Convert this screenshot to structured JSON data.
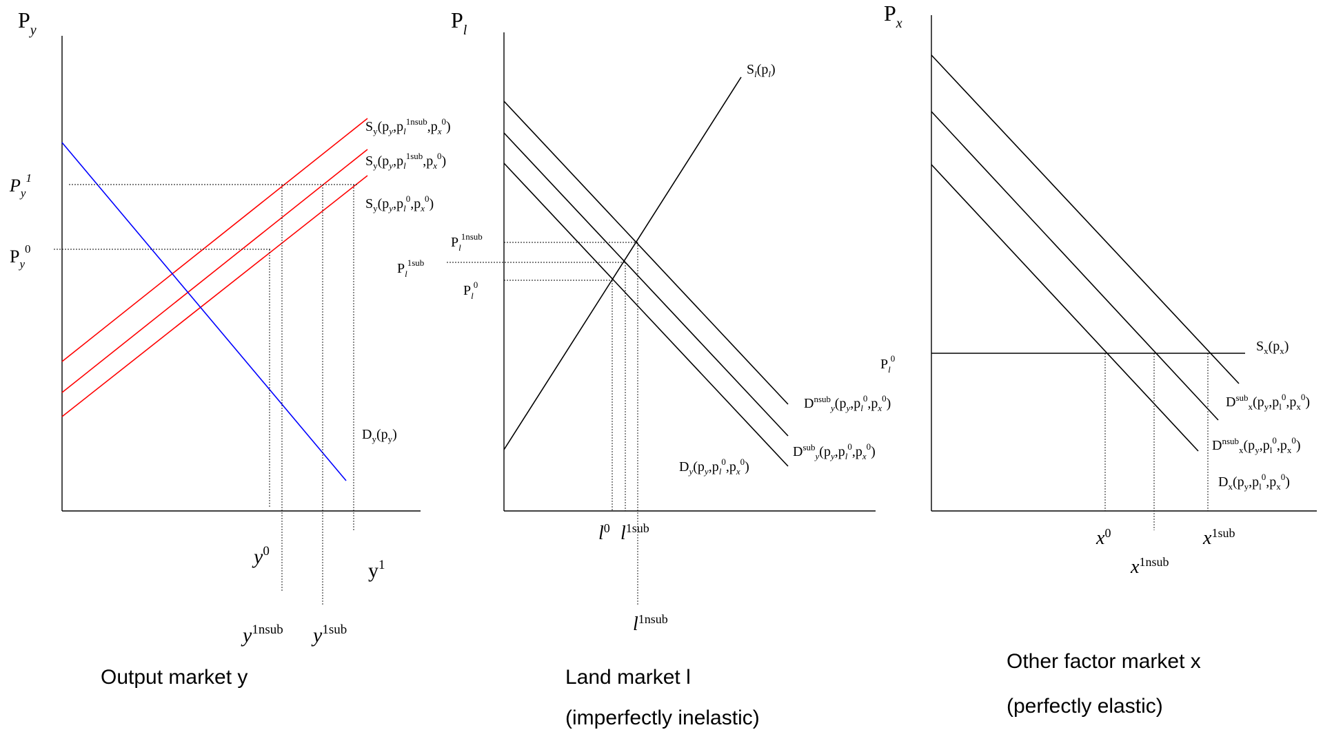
{
  "panel_y": {
    "caption": "Output market y",
    "price_axis_label": "P",
    "price_axis_sub": "y",
    "labels": {
      "s_top": {
        "main": "S",
        "sub": "y",
        "args": "(p",
        "args_sub": "y",
        "args2": ",p",
        "args2_sub": "l",
        "args2_sup": "1nsub",
        "args3": ",p",
        "args3_sub": "x",
        "args3_sup": "0",
        "close": ")"
      },
      "s_mid": {
        "main": "S",
        "sub": "y",
        "args": "(p",
        "args_sub": "y",
        "args2": ",p",
        "args2_sub": "l",
        "args2_sup": "1sub",
        "args3": ",p",
        "args3_sub": "x",
        "args3_sup": "0",
        "close": ")"
      },
      "s_low": {
        "main": "S",
        "sub": "y",
        "args": "(p",
        "args_sub": "y",
        "args2": ",p",
        "args2_sub": "l",
        "args2_sup": "0",
        "args3": ",p",
        "args3_sub": "x",
        "args3_sup": "0",
        "close": ")"
      },
      "demand": {
        "main": "D",
        "sub": "y",
        "args": "(p",
        "args_sub": "y",
        "close": ")"
      },
      "py1": {
        "main": "P",
        "sub": "y",
        "sup": "1"
      },
      "py0": {
        "main": "P",
        "sub": "y",
        "sup": "0"
      },
      "y0": {
        "main": "y",
        "sup": "0"
      },
      "y1": {
        "main": "y",
        "sup": "1"
      },
      "y1nsub": {
        "main": "y",
        "sup": "1nsub"
      },
      "y1sub": {
        "main": "y",
        "sup": "1sub"
      }
    }
  },
  "panel_l": {
    "caption_line1": "Land market l",
    "caption_line2": "(imperfectly inelastic)",
    "price_axis_label": "P",
    "price_axis_sub": "l",
    "labels": {
      "supply": {
        "main": "S",
        "sub": "l",
        "args": "(p",
        "args_sub": "l",
        "close": ")"
      },
      "pl1nsub": {
        "main": "P",
        "sub": "l",
        "sup": "1nsub"
      },
      "pl1sub": {
        "main": "P",
        "sub": "l",
        "sup": "1sub"
      },
      "pl0": {
        "main": "P",
        "sub": "l",
        "sup": "0"
      },
      "d_nsub": {
        "main": "D",
        "sup": "nsub",
        "sub": "y",
        "args": "(p",
        "args_sub": "y",
        "args2": ",p",
        "args2_sub": "l",
        "args2_sup": "0",
        "args3": ",p",
        "args3_sub": "x",
        "args3_sup": "0",
        "close": ")"
      },
      "d_sub": {
        "main": "D",
        "sup": "sub",
        "sub": "y",
        "args": "(p",
        "args_sub": "y",
        "args2": ",p",
        "args2_sub": "l",
        "args2_sup": "0",
        "args3": ",p",
        "args3_sub": "x",
        "args3_sup": "0",
        "close": ")"
      },
      "d_base": {
        "main": "D",
        "sub": "y",
        "args": "(p",
        "args_sub": "y",
        "args2": ",p",
        "args2_sub": "l",
        "args2_sup": "0",
        "args3": ",p",
        "args3_sub": "x",
        "args3_sup": "0",
        "close": ")"
      },
      "l0": {
        "main": "l",
        "sup": "0"
      },
      "l1sub": {
        "main": "l",
        "sup": "1sub"
      },
      "l1nsub": {
        "main": "l",
        "sup": "1nsub"
      }
    }
  },
  "panel_x": {
    "caption_line1": "Other factor market x",
    "caption_line2": "(perfectly elastic)",
    "price_axis_label": "P",
    "price_axis_sub": "x",
    "labels": {
      "supply": {
        "main": "S",
        "sub": "x",
        "args": "(p",
        "args_sub": "x",
        "close": ")"
      },
      "pl0": {
        "main": "P",
        "sub": "l",
        "sup": "0"
      },
      "d_sub": {
        "main": "D",
        "sup": "sub",
        "sub": "x",
        "args": "(p",
        "args_sub": "y",
        "args2": ",p",
        "args2_sub": "l",
        "args2_sup": "0",
        "args3": ",p",
        "args3_sub": "x",
        "args3_sup": "0",
        "close": ")"
      },
      "d_nsub": {
        "main": "D",
        "sup": "nsub",
        "sub": "x",
        "args": "(p",
        "args_sub": "y",
        "args2": ",p",
        "args2_sub": "l",
        "args2_sup": "0",
        "args3": ",p",
        "args3_sub": "x",
        "args3_sup": "0",
        "close": ")"
      },
      "d_base": {
        "main": "D",
        "sub": "x",
        "args": "(p",
        "args_sub": "y",
        "args2": ",p",
        "args2_sub": "l",
        "args2_sup": "0",
        "args3": ",p",
        "args3_sub": "x",
        "args3_sup": "0",
        "close": ")"
      },
      "x0": {
        "main": "x",
        "sup": "0"
      },
      "x1sub": {
        "main": "x",
        "sup": "1sub"
      },
      "x1nsub": {
        "main": "x",
        "sup": "1nsub"
      }
    }
  },
  "colors": {
    "supply_shift": "#ff0000",
    "demand_output": "#0000ff",
    "lines": "#000000"
  }
}
